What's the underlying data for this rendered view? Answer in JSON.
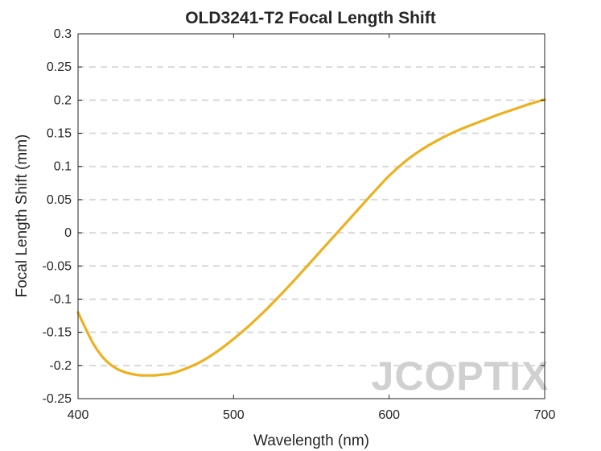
{
  "chart_data": {
    "type": "line",
    "title": "OLD3241-T2 Focal Length Shift",
    "xlabel": "Wavelength (nm)",
    "ylabel": "Focal Length Shift (mm)",
    "xlim": [
      400,
      700
    ],
    "ylim": [
      -0.25,
      0.3
    ],
    "xticks": [
      400,
      500,
      600,
      700
    ],
    "xtick_labels": [
      "400",
      "500",
      "600",
      "700"
    ],
    "yticks": [
      -0.25,
      -0.2,
      -0.15,
      -0.1,
      -0.05,
      0,
      0.05,
      0.1,
      0.15,
      0.2,
      0.25,
      0.3
    ],
    "ytick_labels": [
      "-0.25",
      "-0.2",
      "-0.15",
      "-0.1",
      "-0.05",
      "0",
      "0.05",
      "0.1",
      "0.15",
      "0.2",
      "0.25",
      "0.3"
    ],
    "grid": "horizontal-dashed",
    "series": [
      {
        "name": "Focal Length Shift",
        "color": "#EDB120",
        "x": [
          400,
          405,
          410,
          415,
          420,
          425,
          430,
          435,
          440,
          445,
          450,
          455,
          460,
          470,
          480,
          490,
          500,
          510,
          520,
          530,
          540,
          550,
          560,
          570,
          580,
          590,
          600,
          610,
          620,
          630,
          640,
          650,
          660,
          670,
          680,
          690,
          700
        ],
        "y": [
          -0.12,
          -0.145,
          -0.168,
          -0.185,
          -0.197,
          -0.205,
          -0.21,
          -0.213,
          -0.2148,
          -0.215,
          -0.2148,
          -0.2135,
          -0.212,
          -0.204,
          -0.193,
          -0.178,
          -0.16,
          -0.14,
          -0.118,
          -0.094,
          -0.069,
          -0.043,
          -0.017,
          0.009,
          0.035,
          0.061,
          0.086,
          0.107,
          0.124,
          0.138,
          0.15,
          0.16,
          0.169,
          0.178,
          0.186,
          0.194,
          0.201
        ]
      }
    ]
  },
  "watermark": "JCOPTIX"
}
